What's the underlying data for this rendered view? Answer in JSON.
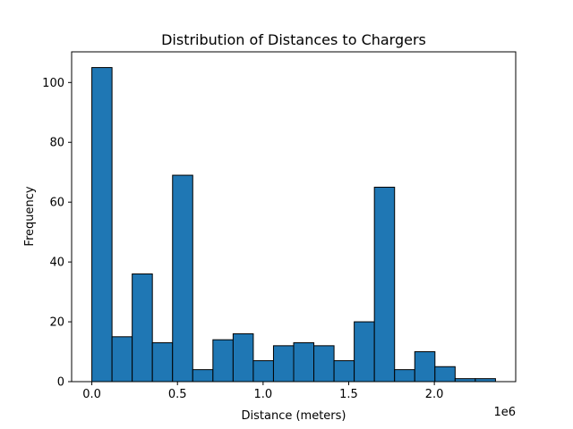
{
  "chart_data": {
    "type": "bar",
    "title": "Distribution of Distances to Chargers",
    "xlabel": "Distance (meters)",
    "ylabel": "Frequency",
    "x_offset_label": "1e6",
    "bin_edges": [
      0,
      0.11785,
      0.2357,
      0.35355,
      0.4714,
      0.58925,
      0.7071,
      0.82495,
      0.9428,
      1.06065,
      1.1785,
      1.29635,
      1.4142,
      1.53205,
      1.6499,
      1.76775,
      1.8856,
      2.00345,
      2.1213,
      2.23915,
      2.357
    ],
    "values": [
      105,
      15,
      36,
      13,
      69,
      4,
      14,
      16,
      7,
      12,
      13,
      12,
      7,
      20,
      65,
      4,
      10,
      5,
      1,
      1
    ],
    "xlim": [
      -0.118,
      2.475
    ],
    "ylim": [
      0,
      110.25
    ],
    "xticks": [
      0.0,
      0.5,
      1.0,
      1.5,
      2.0
    ],
    "xtick_labels": [
      "0.0",
      "0.5",
      "1.0",
      "1.5",
      "2.0"
    ],
    "yticks": [
      0,
      20,
      40,
      60,
      80,
      100
    ],
    "ytick_labels": [
      "0",
      "20",
      "40",
      "60",
      "80",
      "100"
    ],
    "bar_color": "#1f77b4",
    "edge_color": "#000000",
    "grid": false,
    "legend": "none"
  }
}
